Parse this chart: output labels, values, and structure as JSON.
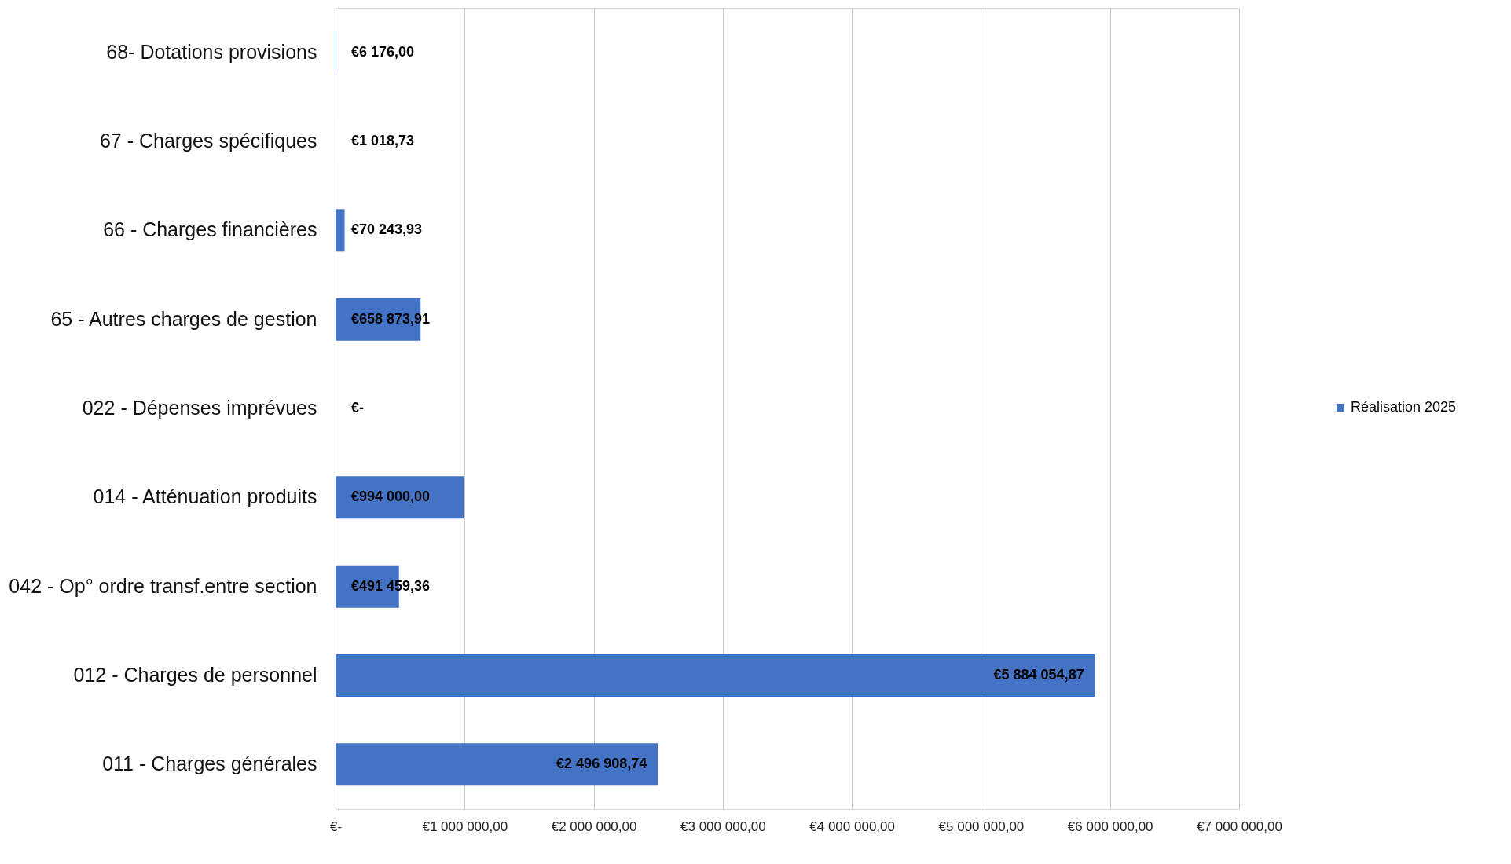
{
  "chart_data": {
    "type": "bar",
    "orientation": "horizontal",
    "categories": [
      "68- Dotations provisions",
      "67 - Charges spécifiques",
      "66 - Charges financières",
      "65 - Autres charges de gestion",
      "022 - Dépenses imprévues",
      "014 - Atténuation produits",
      "042 - Op° ordre transf.entre section",
      "012 - Charges de personnel",
      "011 - Charges générales"
    ],
    "series": [
      {
        "name": "Réalisation 2025",
        "color": "#4472c4",
        "values": [
          6176,
          1018.73,
          70243.93,
          658873.91,
          0,
          994000,
          491459.36,
          5884054.87,
          2496908.74
        ],
        "value_labels": [
          "€6 176,00",
          "€1 018,73",
          "€70 243,93",
          "€658 873,91",
          "€-",
          "€994 000,00",
          "€491 459,36",
          "€5 884 054,87",
          "€2 496 908,74"
        ]
      }
    ],
    "xlim": [
      0,
      7000000
    ],
    "xticks": [
      {
        "value": 0,
        "label": "€-"
      },
      {
        "value": 1000000,
        "label": "€1 000 000,00"
      },
      {
        "value": 2000000,
        "label": "€2 000 000,00"
      },
      {
        "value": 3000000,
        "label": "€3 000 000,00"
      },
      {
        "value": 4000000,
        "label": "€4 000 000,00"
      },
      {
        "value": 5000000,
        "label": "€5 000 000,00"
      },
      {
        "value": 6000000,
        "label": "€6 000 000,00"
      },
      {
        "value": 7000000,
        "label": "€7 000 000,00"
      }
    ],
    "grid": "x",
    "legend": "right"
  }
}
